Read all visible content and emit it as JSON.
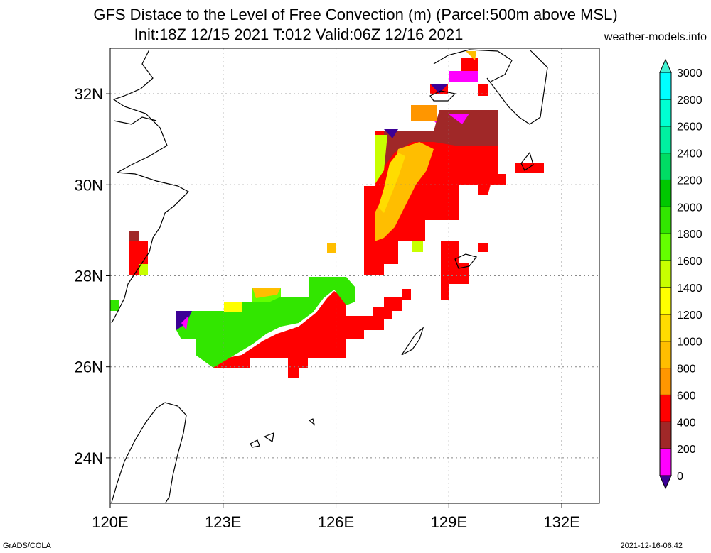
{
  "title_line1": "GFS Distace to the Level of Free Convection (m) (Parcel:500m above MSL)",
  "title_line2": "Init:18Z 12/15 2021 T:012 Valid:06Z 12/16 2021",
  "site": "weather-models.info",
  "footer_left": "GrADS/COLA",
  "footer_right": "2021-12-16-06:42",
  "map": {
    "lon_range": [
      120,
      133
    ],
    "lat_range": [
      23,
      33
    ],
    "lon_ticks": [
      "120E",
      "123E",
      "126E",
      "129E",
      "132E"
    ],
    "lat_ticks": [
      "32N",
      "30N",
      "28N",
      "26N",
      "24N"
    ],
    "grid": true
  },
  "colorbar": {
    "labels": [
      "0",
      "200",
      "400",
      "600",
      "800",
      "1000",
      "1200",
      "1400",
      "1600",
      "1800",
      "2000",
      "2200",
      "2400",
      "2600",
      "2800",
      "3000"
    ],
    "colors": [
      "#3c0096",
      "#ff00ff",
      "#a02828",
      "#ff0000",
      "#ff9600",
      "#ffbe00",
      "#ffdc00",
      "#ffff00",
      "#c8ff00",
      "#64ff00",
      "#32e600",
      "#00c800",
      "#00dc64",
      "#00f0a0",
      "#00ffd2",
      "#00ffff"
    ],
    "under_color": "#3c0096",
    "over_color": "#40f0d0"
  },
  "colors": {
    "land_outline": "#000000",
    "grid": "#888888"
  }
}
